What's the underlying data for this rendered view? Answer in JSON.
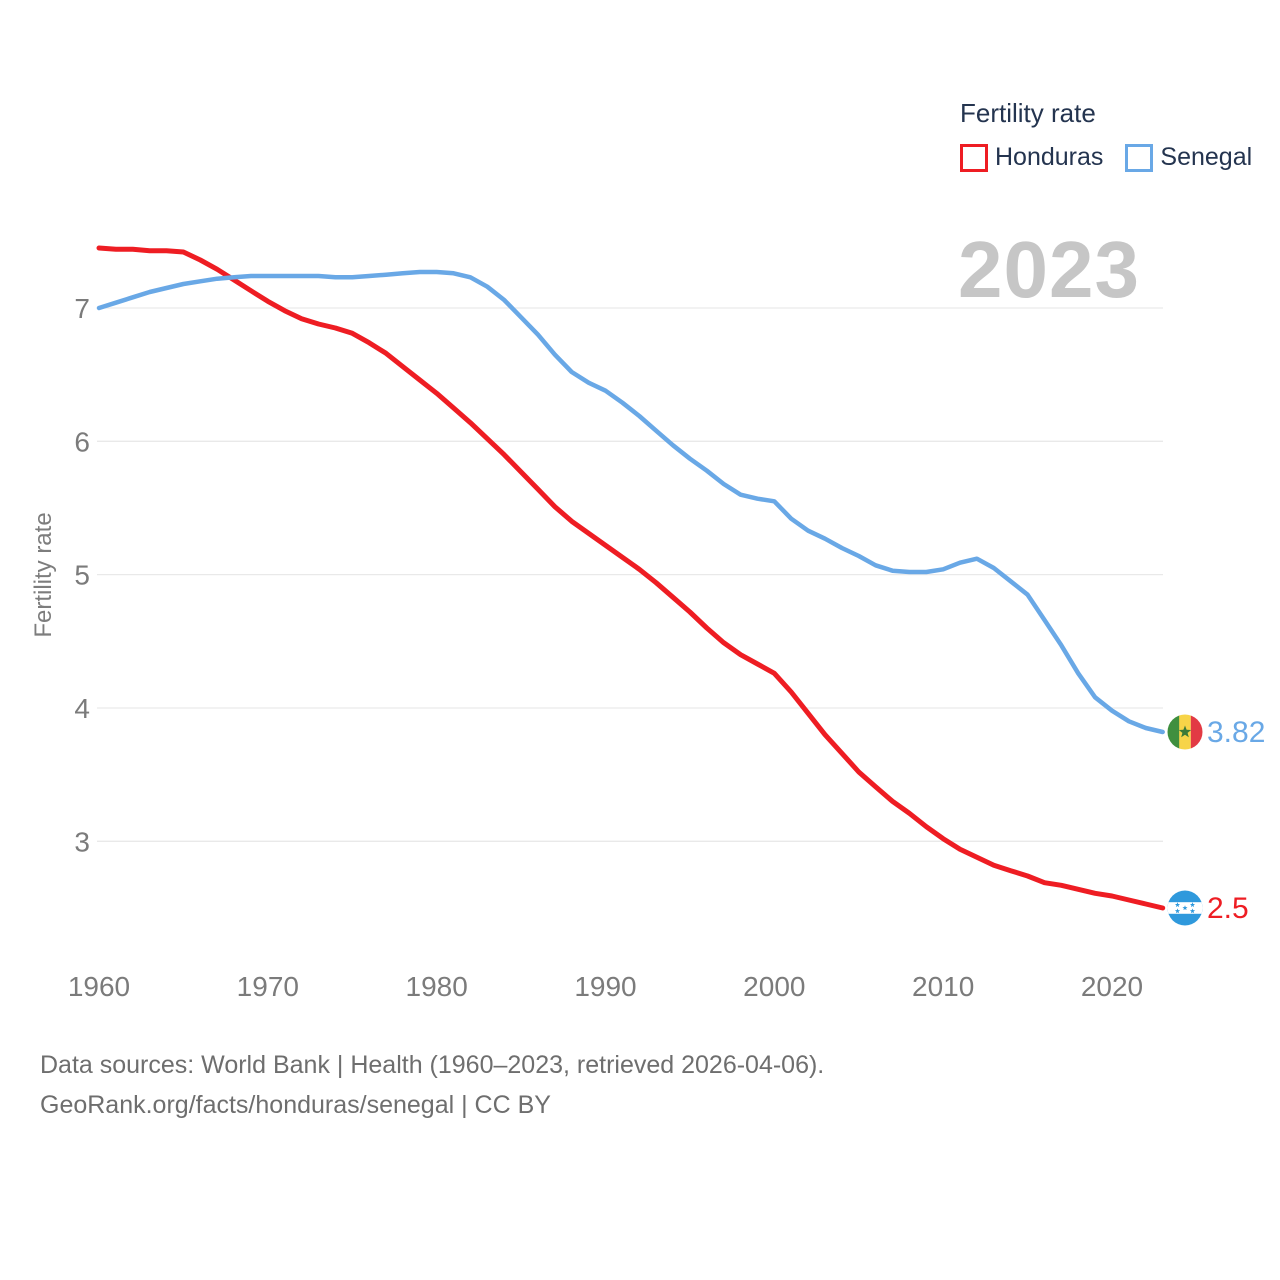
{
  "legend": {
    "title": "Fertility rate",
    "items": [
      {
        "label": "Honduras",
        "color": "#ee1d23"
      },
      {
        "label": "Senegal",
        "color": "#69a8e6"
      }
    ]
  },
  "watermark": "2023",
  "footer": {
    "line1": "Data sources: World Bank | Health (1960–2023, retrieved 2026-04-06).",
    "line2": "GeoRank.org/facts/honduras/senegal | CC BY"
  },
  "chart_data": {
    "type": "line",
    "title": "Fertility rate",
    "ylabel": "Fertility rate",
    "x_range": [
      1960,
      2023
    ],
    "xticks": [
      1960,
      1970,
      1980,
      1990,
      2000,
      2010,
      2020
    ],
    "yticks": [
      3,
      4,
      5,
      6,
      7
    ],
    "ylim": [
      2.3,
      7.6
    ],
    "grid": true,
    "legend_position": "top-right",
    "watermark_year": "2023",
    "series": [
      {
        "name": "Honduras",
        "color": "#ee1d23",
        "flag": "honduras",
        "end_label": "2.5",
        "values": [
          7.45,
          7.44,
          7.44,
          7.43,
          7.43,
          7.42,
          7.36,
          7.29,
          7.21,
          7.13,
          7.05,
          6.98,
          6.92,
          6.88,
          6.85,
          6.81,
          6.74,
          6.66,
          6.56,
          6.46,
          6.36,
          6.25,
          6.14,
          6.02,
          5.9,
          5.77,
          5.64,
          5.51,
          5.4,
          5.31,
          5.22,
          5.13,
          5.04,
          4.94,
          4.83,
          4.72,
          4.6,
          4.49,
          4.4,
          4.33,
          4.26,
          4.12,
          3.96,
          3.8,
          3.66,
          3.52,
          3.41,
          3.3,
          3.21,
          3.11,
          3.02,
          2.94,
          2.88,
          2.82,
          2.78,
          2.74,
          2.69,
          2.67,
          2.64,
          2.61,
          2.59,
          2.56,
          2.53,
          2.5
        ]
      },
      {
        "name": "Senegal",
        "color": "#69a8e6",
        "flag": "senegal",
        "end_label": "3.82",
        "values": [
          7.0,
          7.04,
          7.08,
          7.12,
          7.15,
          7.18,
          7.2,
          7.22,
          7.23,
          7.24,
          7.24,
          7.24,
          7.24,
          7.24,
          7.23,
          7.23,
          7.24,
          7.25,
          7.26,
          7.27,
          7.27,
          7.26,
          7.23,
          7.16,
          7.06,
          6.93,
          6.8,
          6.65,
          6.52,
          6.44,
          6.38,
          6.29,
          6.19,
          6.08,
          5.97,
          5.87,
          5.78,
          5.68,
          5.6,
          5.57,
          5.55,
          5.42,
          5.33,
          5.27,
          5.2,
          5.14,
          5.07,
          5.03,
          5.02,
          5.02,
          5.04,
          5.09,
          5.12,
          5.05,
          4.95,
          4.85,
          4.66,
          4.47,
          4.26,
          4.08,
          3.98,
          3.9,
          3.85,
          3.82
        ]
      }
    ],
    "flag_colors": {
      "senegal": {
        "green": "#3f8f3f",
        "yellow": "#f7d448",
        "red": "#e23a44",
        "star": "#3c7a38"
      },
      "honduras": {
        "blue": "#2f99dc",
        "white": "#ffffff"
      }
    }
  },
  "axis_style": {
    "tick_color": "#7b7b7b",
    "grid_color": "#e9e9e9",
    "watermark_color": "#c6c6c6"
  }
}
